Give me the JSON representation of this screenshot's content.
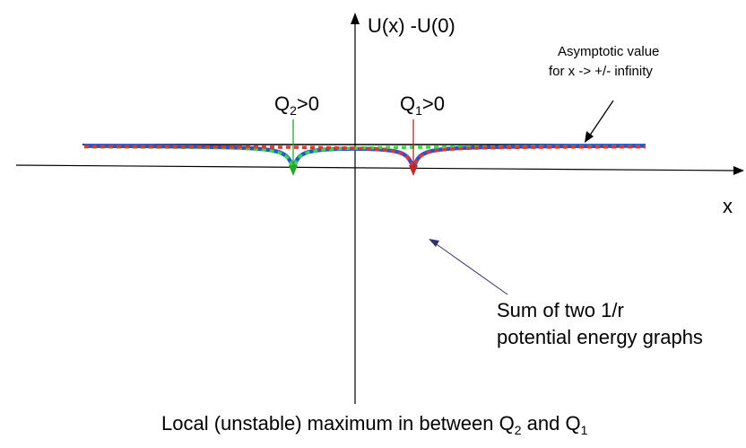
{
  "axes": {
    "y_label": "U(x) -U(0)",
    "x_label": "x"
  },
  "charges": {
    "q2": {
      "symbol": "Q",
      "subscript": "2",
      "relation": ">0",
      "color": "#22aa22"
    },
    "q1": {
      "symbol": "Q",
      "subscript": "1",
      "relation": ">0",
      "color": "#cc2222"
    }
  },
  "annotations": {
    "asymptote_line1": "Asymptotic value",
    "asymptote_line2": "for x -> +/- infinity",
    "sum_line1": "Sum of two 1/r",
    "sum_line2": "potential energy graphs",
    "sum_color": "#4040a0"
  },
  "caption": {
    "text_main": "Local (unstable) maximum in between Q",
    "sub_a": "2",
    "text_mid": " and Q",
    "sub_b": "1"
  },
  "curves": {
    "sum_color": "#2255dd",
    "q1_color": "#ee3322",
    "q2_color": "#33dd33",
    "asymptote_color": "#000000"
  }
}
